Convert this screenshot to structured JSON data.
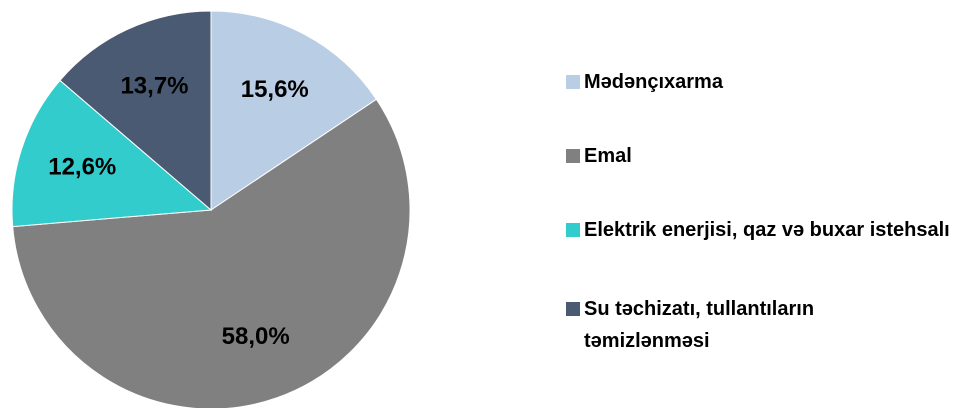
{
  "chart_data": {
    "type": "pie",
    "categories": [
      "Mədənçıxarma",
      "Emal",
      "Elektrik enerjisi, qaz və buxar istehsalı",
      "Su təchizatı, tullantıların təmizlənməsi"
    ],
    "values": [
      15.6,
      58.0,
      12.6,
      13.7
    ],
    "value_labels": [
      "15,6%",
      "58,0%",
      "12,6%",
      "13,7%"
    ],
    "colors": [
      "#b9cde5",
      "#808080",
      "#33cccc",
      "#4a5a72"
    ],
    "legend": "right"
  }
}
